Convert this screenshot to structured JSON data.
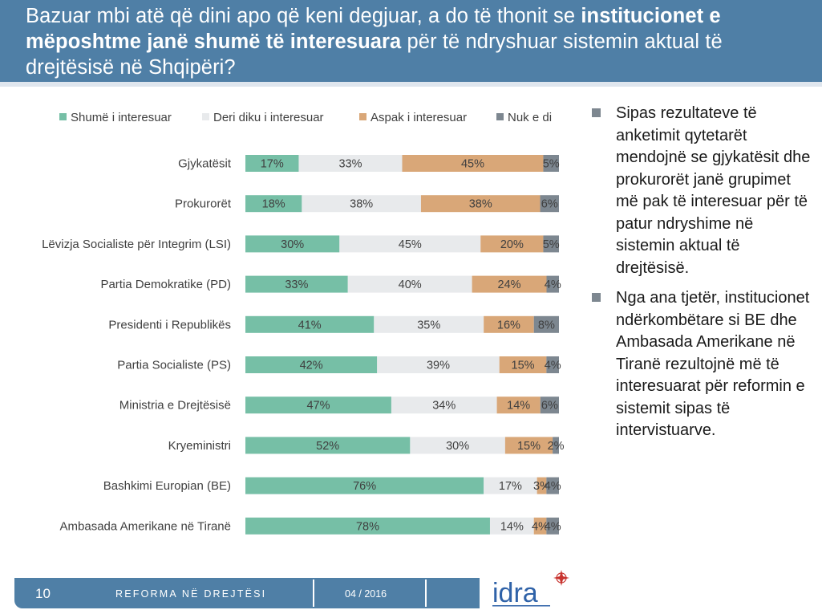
{
  "header": {
    "title_part1": "Bazuar mbi atë që dini apo që keni degjuar, a do të thonit se ",
    "title_bold": "institucionet e mëposhtme janë shumë të interesuara",
    "title_part2": " për të ndryshuar sistemin aktual të drejtësisë në Shqipëri?"
  },
  "chart_data": {
    "type": "bar",
    "orientation": "horizontal",
    "stacked": true,
    "unit": "%",
    "legend_position": "top",
    "categories": [
      "Gjykatësit",
      "Prokurorët",
      "Lëvizja Socialiste për Integrim (LSI)",
      "Partia Demokratike (PD)",
      "Presidenti i Republikës",
      "Partia Socialiste (PS)",
      "Ministria e Drejtësisë",
      "Kryeministri",
      "Bashkimi Europian (BE)",
      "Ambasada Amerikane në Tiranë"
    ],
    "series": [
      {
        "name": "Shumë i interesuar",
        "color": "#76bfa6",
        "values": [
          17,
          18,
          30,
          33,
          41,
          42,
          47,
          52,
          76,
          78
        ]
      },
      {
        "name": "Deri diku i interesuar",
        "color": "#e8eaec",
        "values": [
          33,
          38,
          45,
          40,
          35,
          39,
          34,
          30,
          17,
          14
        ]
      },
      {
        "name": "Aspak i interesuar",
        "color": "#d9a778",
        "values": [
          45,
          38,
          20,
          24,
          16,
          15,
          14,
          15,
          3,
          4
        ]
      },
      {
        "name": "Nuk e di",
        "color": "#7d8790",
        "values": [
          5,
          6,
          5,
          4,
          8,
          4,
          6,
          2,
          4,
          4
        ]
      }
    ]
  },
  "bullets": [
    "Sipas rezultateve të anketimit qytetarët mendojnë se gjykatësit dhe prokurorët janë grupimet më pak të interesuar për të patur ndryshime në sistemin aktual të drejtësisë.",
    "Nga ana tjetër, institucionet ndërkombëtare si BE dhe Ambasada Amerikane në Tiranë rezultojnë më të interesuarat për reformin e sistemit sipas të intervistuarve."
  ],
  "footer": {
    "page_number": "10",
    "title": "REFORMA NË DREJTËSI",
    "date": "04 / 2016",
    "logo_text": "idra"
  },
  "colors": {
    "header_bg": "#4f7fa6",
    "bullet_square": "#7d8790",
    "logo_blue": "#2f62a8",
    "logo_red": "#c8332e"
  }
}
